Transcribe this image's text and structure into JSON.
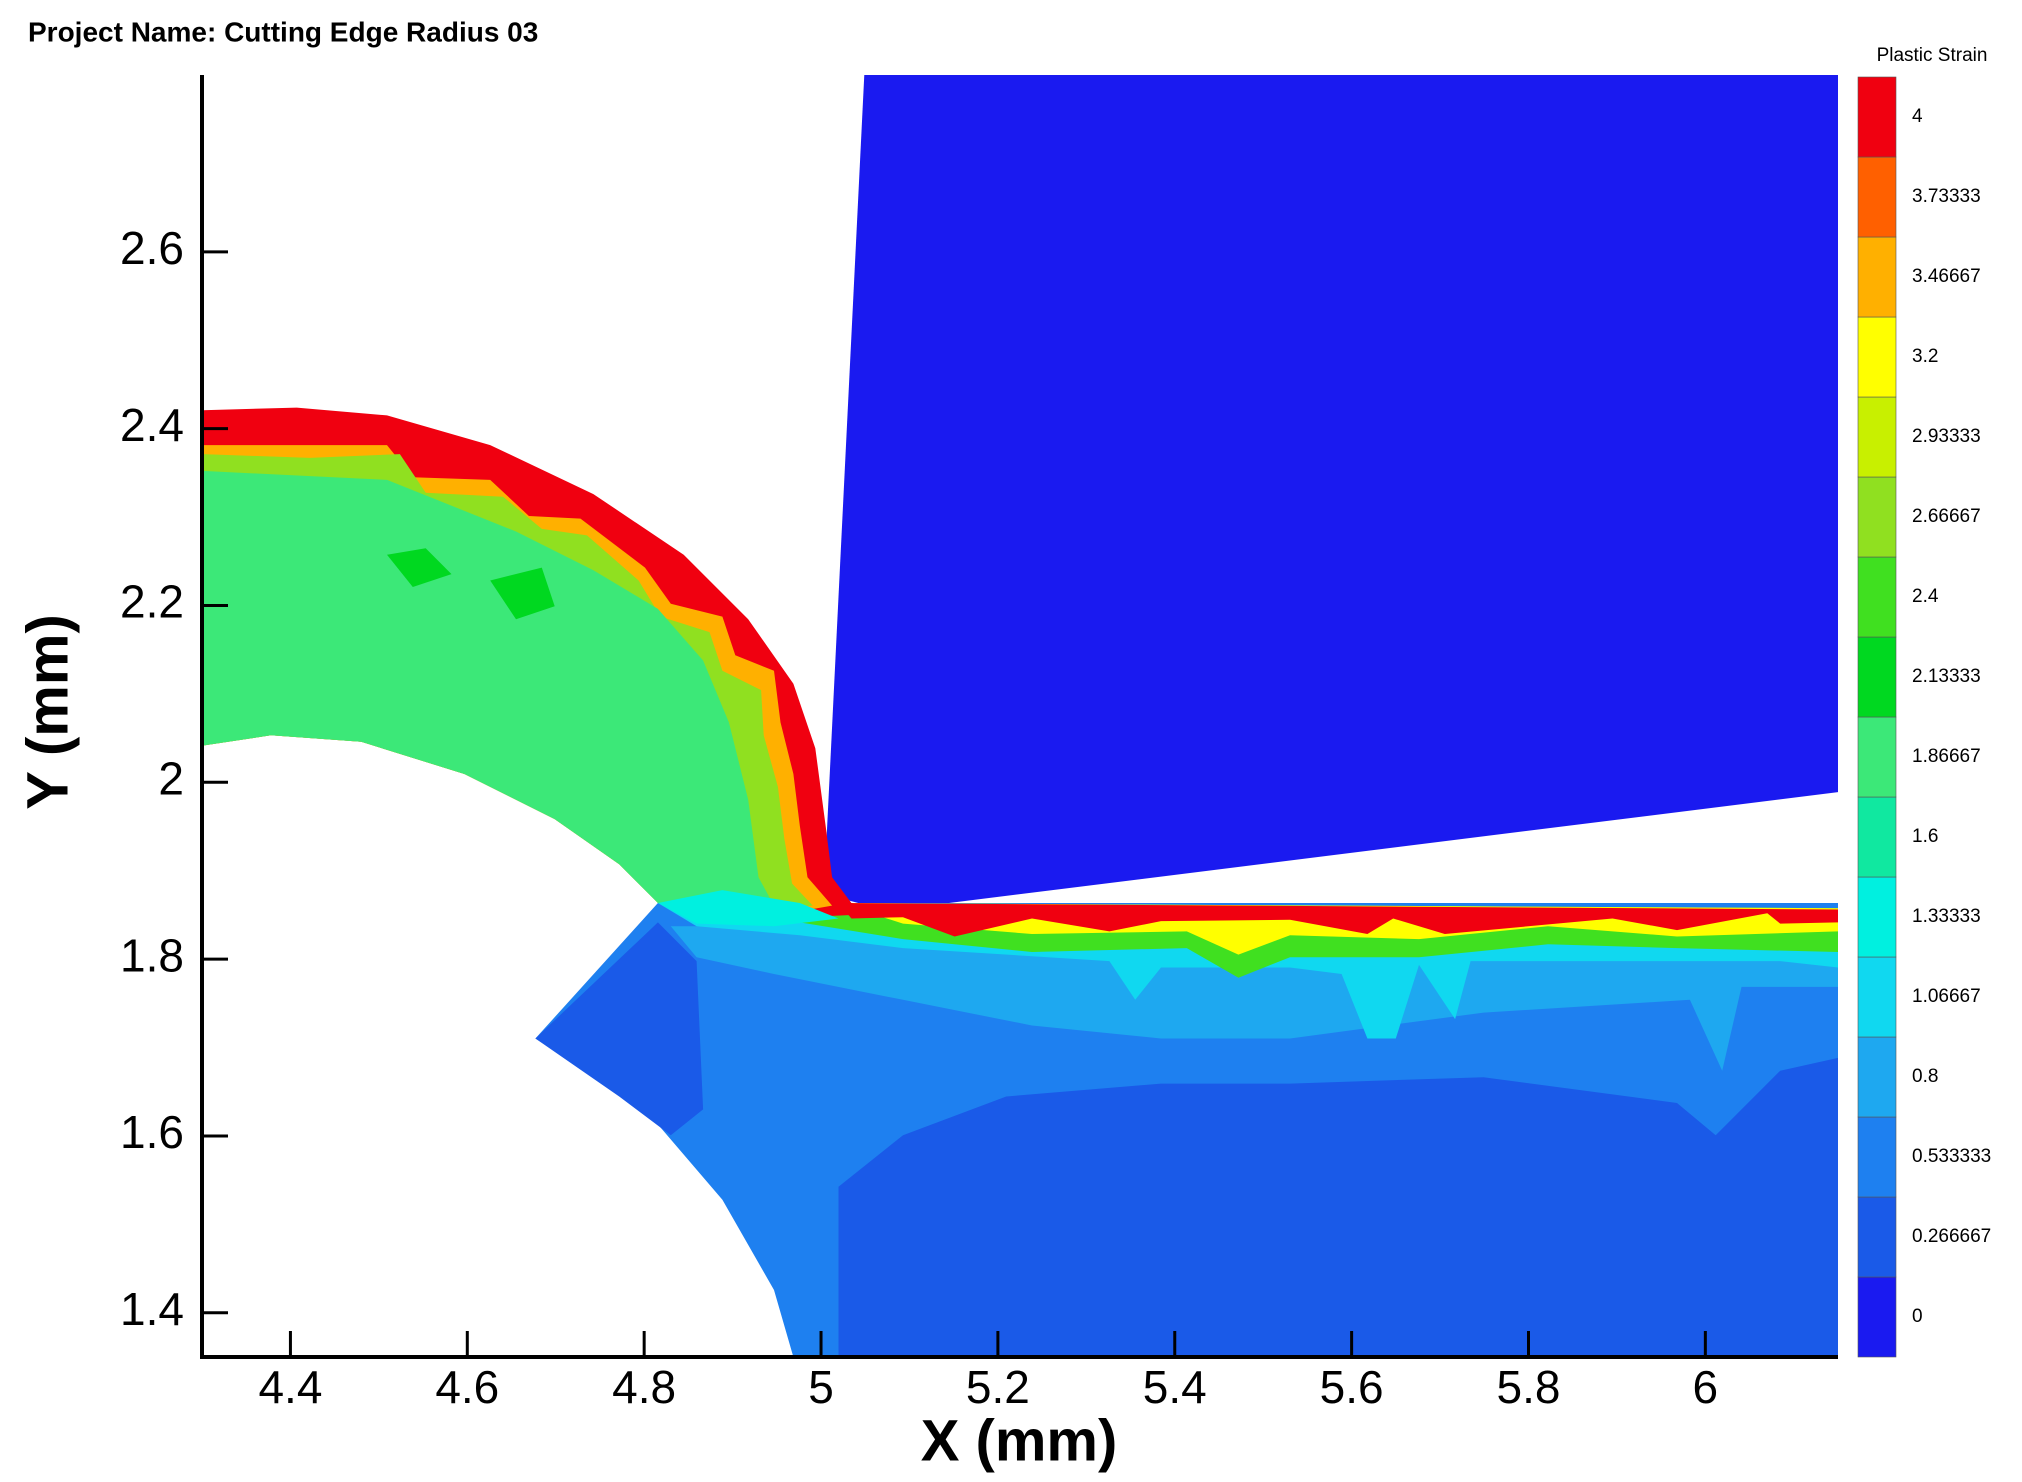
{
  "chart_data": {
    "type": "contour",
    "title": "Project Name: Cutting Edge Radius 03",
    "xlabel": "X (mm)",
    "ylabel": "Y (mm)",
    "xlim": [
      4.3,
      6.15
    ],
    "ylim": [
      1.35,
      2.8
    ],
    "xticks": [
      4.4,
      4.6,
      4.8,
      5,
      5.2,
      5.4,
      5.6,
      5.8,
      6
    ],
    "yticks": [
      1.4,
      1.6,
      1.8,
      2,
      2.2,
      2.4,
      2.6
    ],
    "colorbar": {
      "title": "Plastic Strain",
      "levels": [
        0,
        0.266667,
        0.533333,
        0.8,
        1.06667,
        1.33333,
        1.6,
        1.86667,
        2.13333,
        2.4,
        2.66667,
        2.93333,
        3.2,
        3.46667,
        3.73333,
        4
      ],
      "colors": [
        "#1a1af0",
        "#1a5ae8",
        "#1e80f0",
        "#1ea8f0",
        "#10d8f0",
        "#00f0e0",
        "#10e8a0",
        "#3ce878",
        "#00d820",
        "#40e020",
        "#90e020",
        "#c8f000",
        "#ffff00",
        "#ffb000",
        "#ff6000",
        "#f00010"
      ]
    }
  }
}
